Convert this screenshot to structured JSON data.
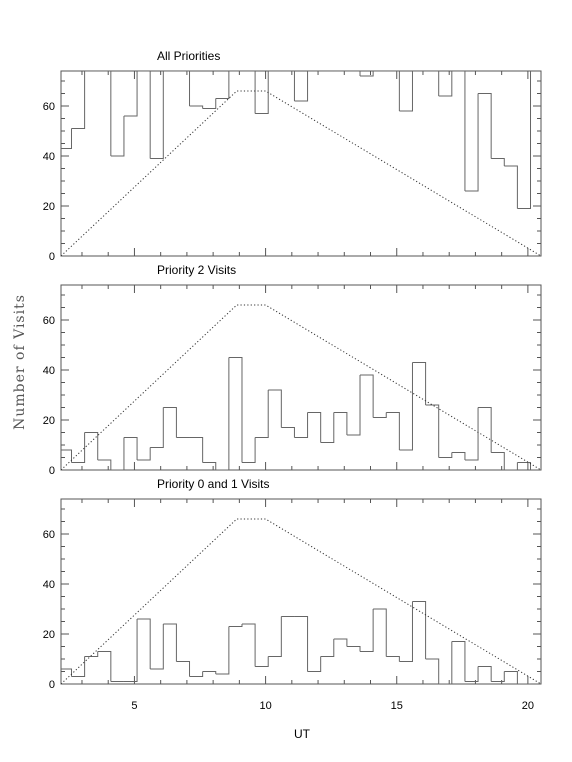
{
  "chart_data": {
    "type": "histogram",
    "ylabel": "Number of Visits",
    "xlabel": "UT",
    "xlim": [
      2.2,
      20.5
    ],
    "bin_edges": [
      2.2,
      2.6,
      3.1,
      3.6,
      4.1,
      4.6,
      5.1,
      5.6,
      6.1,
      6.6,
      7.1,
      7.6,
      8.1,
      8.6,
      9.1,
      9.6,
      10.1,
      10.6,
      11.1,
      11.6,
      12.1,
      12.6,
      13.1,
      13.6,
      14.1,
      14.6,
      15.1,
      15.6,
      16.1,
      16.6,
      17.1,
      17.6,
      18.1,
      18.6,
      19.1,
      19.6,
      20.1
    ],
    "x_ticks": [
      5,
      10,
      15,
      20
    ],
    "x_tick_labels": [
      "5",
      "10",
      "15",
      "20"
    ],
    "panels": [
      {
        "title": "All Priorities",
        "ylim": [
          0,
          74
        ],
        "y_ticks": [
          0,
          20,
          40,
          60
        ],
        "y_tick_labels": [
          "0",
          "20",
          "40",
          "60"
        ],
        "values": [
          43,
          51,
          74,
          74,
          40,
          56,
          74,
          39,
          74,
          74,
          60,
          59,
          63,
          74,
          74,
          57,
          74,
          74,
          62,
          74,
          74,
          74,
          74,
          72,
          74,
          74,
          58,
          74,
          74,
          64,
          74,
          26,
          65,
          39,
          36,
          19,
          74
        ],
        "capacity": {
          "x": [
            2.2,
            8.9,
            10.0,
            20.5
          ],
          "y": [
            0,
            66,
            66,
            0
          ]
        }
      },
      {
        "title": "Priority 2 Visits",
        "ylim": [
          0,
          74
        ],
        "y_ticks": [
          0,
          20,
          40,
          60
        ],
        "y_tick_labels": [
          "0",
          "20",
          "40",
          "60"
        ],
        "values": [
          8,
          3,
          15,
          4,
          0,
          13,
          4,
          9,
          25,
          13,
          13,
          3,
          0,
          45,
          3,
          13,
          32,
          17,
          13,
          23,
          11,
          23,
          14,
          38,
          21,
          23,
          8,
          43,
          26,
          5,
          7,
          4,
          25,
          7,
          0,
          3,
          0
        ],
        "capacity": {
          "x": [
            2.2,
            8.9,
            10.0,
            20.5
          ],
          "y": [
            0,
            66,
            66,
            0
          ]
        }
      },
      {
        "title": "Priority 0 and 1 Visits",
        "ylim": [
          0,
          74
        ],
        "y_ticks": [
          0,
          20,
          40,
          60
        ],
        "y_tick_labels": [
          "0",
          "20",
          "40",
          "60"
        ],
        "values": [
          6,
          3,
          11,
          13,
          1,
          1,
          26,
          6,
          24,
          9,
          3,
          5,
          4,
          23,
          24,
          7,
          11,
          27,
          27,
          5,
          11,
          18,
          15,
          13,
          30,
          11,
          9,
          33,
          10,
          0,
          17,
          1,
          7,
          1,
          5,
          0,
          0
        ],
        "capacity": {
          "x": [
            2.2,
            8.9,
            10.0,
            20.5
          ],
          "y": [
            0,
            66,
            66,
            0
          ]
        }
      }
    ]
  }
}
